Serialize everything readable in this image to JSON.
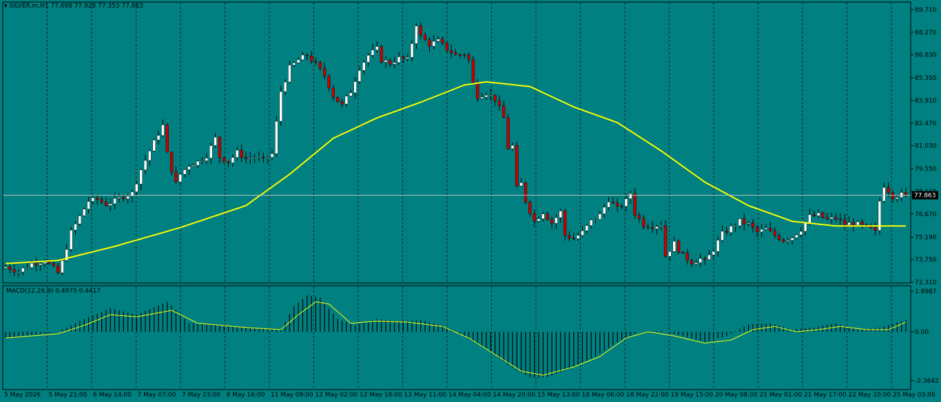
{
  "header": {
    "symbol": "SILVER.m,H1",
    "ohlc": "77.698 77.928 77.353 77.863"
  },
  "colors": {
    "background": "#008080",
    "grid": "#1f1f1f",
    "bull_candle": "#ffffff",
    "bear_candle": "#c80000",
    "wick": "#000000",
    "ma_line": "#ffff00",
    "price_line": "#c0c0c0",
    "macd_signal": "#ffff00",
    "macd_hist": "#000000"
  },
  "chart_data": [
    {
      "type": "candlestick",
      "name": "SILVER.m,H1",
      "ylim": [
        72.31,
        89.71
      ],
      "y_ticks": [
        "89.710",
        "88.270",
        "86.830",
        "85.350",
        "83.910",
        "82.470",
        "81.030",
        "79.550",
        "78.110",
        "76.670",
        "75.190",
        "73.750",
        "72.310"
      ],
      "x_ticks": [
        "5 May 2026",
        "5 May 21:00",
        "6 May 14:00",
        "7 May 07:00",
        "7 May 23:00",
        "8 May 16:00",
        "11 May 09:00",
        "12 May 02:00",
        "12 May 18:00",
        "13 May 11:00",
        "14 May 04:00",
        "14 May 20:00",
        "15 May 13:00",
        "18 May 06:00",
        "18 May 22:00",
        "19 May 15:00",
        "20 May 08:00",
        "21 May 01:00",
        "21 May 17:00",
        "22 May 10:00",
        "25 May 03:00"
      ],
      "current_price": "77.863",
      "close_path": [
        [
          0,
          73.3
        ],
        [
          3,
          73.0
        ],
        [
          6,
          73.5
        ],
        [
          9,
          73.7
        ],
        [
          11,
          73.2
        ],
        [
          12,
          72.9
        ],
        [
          13,
          73.6
        ],
        [
          15,
          75.5
        ],
        [
          17,
          76.5
        ],
        [
          19,
          77.5
        ],
        [
          21,
          77.6
        ],
        [
          23,
          77.3
        ],
        [
          25,
          77.5
        ],
        [
          27,
          77.8
        ],
        [
          29,
          78.0
        ],
        [
          31,
          79.5
        ],
        [
          33,
          80.7
        ],
        [
          35,
          81.8
        ],
        [
          36,
          82.3
        ],
        [
          37,
          80.5
        ],
        [
          38,
          79.5
        ],
        [
          39,
          78.6
        ],
        [
          40,
          79.2
        ],
        [
          42,
          79.8
        ],
        [
          44,
          80.0
        ],
        [
          46,
          80.4
        ],
        [
          48,
          81.5
        ],
        [
          49,
          80.3
        ],
        [
          51,
          80.0
        ],
        [
          53,
          80.6
        ],
        [
          55,
          80.2
        ],
        [
          57,
          80.3
        ],
        [
          59,
          80.1
        ],
        [
          61,
          80.5
        ],
        [
          63,
          84.5
        ],
        [
          65,
          86.0
        ],
        [
          67,
          86.5
        ],
        [
          69,
          86.8
        ],
        [
          71,
          86.2
        ],
        [
          73,
          85.5
        ],
        [
          75,
          84.2
        ],
        [
          77,
          83.6
        ],
        [
          79,
          84.5
        ],
        [
          81,
          86.0
        ],
        [
          83,
          86.8
        ],
        [
          85,
          87.2
        ],
        [
          86,
          86.5
        ],
        [
          88,
          86.3
        ],
        [
          90,
          86.6
        ],
        [
          92,
          86.5
        ],
        [
          93,
          87.6
        ],
        [
          94,
          88.8
        ],
        [
          95,
          88.0
        ],
        [
          97,
          87.5
        ],
        [
          99,
          87.7
        ],
        [
          101,
          87.2
        ],
        [
          103,
          86.8
        ],
        [
          105,
          86.9
        ],
        [
          106,
          86.5
        ],
        [
          107,
          85.0
        ],
        [
          108,
          84.2
        ],
        [
          110,
          84.4
        ],
        [
          112,
          84.0
        ],
        [
          114,
          82.8
        ],
        [
          115,
          80.9
        ],
        [
          116,
          81.0
        ],
        [
          117,
          78.3
        ],
        [
          118,
          78.6
        ],
        [
          119,
          77.5
        ],
        [
          121,
          76.2
        ],
        [
          123,
          76.8
        ],
        [
          125,
          76.1
        ],
        [
          127,
          76.8
        ],
        [
          128,
          75.3
        ],
        [
          130,
          75.1
        ],
        [
          132,
          75.5
        ],
        [
          134,
          76.2
        ],
        [
          136,
          76.6
        ],
        [
          138,
          77.6
        ],
        [
          140,
          77.0
        ],
        [
          142,
          77.5
        ],
        [
          143,
          78.0
        ],
        [
          144,
          76.7
        ],
        [
          146,
          76.0
        ],
        [
          148,
          75.9
        ],
        [
          150,
          76.0
        ],
        [
          151,
          74.0
        ],
        [
          153,
          74.8
        ],
        [
          155,
          74.0
        ],
        [
          157,
          73.6
        ],
        [
          159,
          73.8
        ],
        [
          160,
          73.6
        ],
        [
          162,
          74.4
        ],
        [
          164,
          75.4
        ],
        [
          166,
          75.8
        ],
        [
          168,
          76.2
        ],
        [
          170,
          76.0
        ],
        [
          172,
          75.5
        ],
        [
          174,
          75.7
        ],
        [
          176,
          75.3
        ],
        [
          178,
          75.0
        ],
        [
          180,
          75.2
        ],
        [
          182,
          75.7
        ],
        [
          184,
          76.5
        ],
        [
          186,
          76.6
        ],
        [
          188,
          76.3
        ],
        [
          190,
          76.4
        ],
        [
          192,
          76.0
        ],
        [
          194,
          76.1
        ],
        [
          196,
          75.9
        ],
        [
          198,
          75.7
        ],
        [
          199,
          75.5
        ],
        [
          200,
          77.5
        ],
        [
          201,
          78.5
        ],
        [
          203,
          77.8
        ],
        [
          205,
          77.9
        ],
        [
          206,
          77.863
        ]
      ],
      "ma_path": [
        [
          0,
          73.5
        ],
        [
          12,
          73.7
        ],
        [
          25,
          74.6
        ],
        [
          40,
          75.8
        ],
        [
          55,
          77.2
        ],
        [
          65,
          79.2
        ],
        [
          75,
          81.5
        ],
        [
          85,
          82.8
        ],
        [
          95,
          83.8
        ],
        [
          105,
          84.9
        ],
        [
          110,
          85.1
        ],
        [
          120,
          84.8
        ],
        [
          130,
          83.5
        ],
        [
          140,
          82.5
        ],
        [
          150,
          80.7
        ],
        [
          160,
          78.7
        ],
        [
          170,
          77.2
        ],
        [
          180,
          76.2
        ],
        [
          190,
          75.9
        ],
        [
          206,
          75.9
        ]
      ]
    },
    {
      "type": "macd",
      "name": "MACD(12,26,9)",
      "values": "0.4975 0.4417",
      "ylim": [
        -2.3642,
        1.8987
      ],
      "y_ticks": [
        "1.8987",
        "0.00",
        "-2.3642"
      ],
      "main_path": [
        [
          0,
          -0.3
        ],
        [
          12,
          0.0
        ],
        [
          18,
          0.6
        ],
        [
          24,
          1.1
        ],
        [
          30,
          0.8
        ],
        [
          37,
          1.4
        ],
        [
          42,
          0.4
        ],
        [
          55,
          0.2
        ],
        [
          63,
          0.1
        ],
        [
          66,
          1.2
        ],
        [
          69,
          1.7
        ],
        [
          72,
          1.6
        ],
        [
          76,
          0.6
        ],
        [
          80,
          0.3
        ],
        [
          85,
          0.6
        ],
        [
          90,
          0.5
        ],
        [
          95,
          0.55
        ],
        [
          100,
          0.3
        ],
        [
          105,
          -0.2
        ],
        [
          110,
          -0.8
        ],
        [
          115,
          -1.6
        ],
        [
          120,
          -2.2
        ],
        [
          124,
          -2.2
        ],
        [
          130,
          -1.7
        ],
        [
          135,
          -1.2
        ],
        [
          140,
          -0.5
        ],
        [
          145,
          0.0
        ],
        [
          150,
          0.05
        ],
        [
          155,
          -0.2
        ],
        [
          160,
          -0.5
        ],
        [
          165,
          -0.2
        ],
        [
          170,
          0.35
        ],
        [
          175,
          0.4
        ],
        [
          180,
          0.1
        ],
        [
          185,
          0.2
        ],
        [
          190,
          0.4
        ],
        [
          195,
          0.1
        ],
        [
          200,
          0.2
        ],
        [
          206,
          0.55
        ]
      ],
      "signal_path": [
        [
          0,
          -0.3
        ],
        [
          12,
          -0.1
        ],
        [
          18,
          0.3
        ],
        [
          24,
          0.8
        ],
        [
          30,
          0.7
        ],
        [
          38,
          1.0
        ],
        [
          44,
          0.4
        ],
        [
          55,
          0.2
        ],
        [
          63,
          0.1
        ],
        [
          67,
          0.8
        ],
        [
          71,
          1.4
        ],
        [
          74,
          1.3
        ],
        [
          79,
          0.4
        ],
        [
          85,
          0.5
        ],
        [
          92,
          0.45
        ],
        [
          100,
          0.25
        ],
        [
          106,
          -0.3
        ],
        [
          112,
          -1.1
        ],
        [
          118,
          -1.9
        ],
        [
          123,
          -2.1
        ],
        [
          130,
          -1.7
        ],
        [
          136,
          -1.2
        ],
        [
          142,
          -0.3
        ],
        [
          147,
          0.0
        ],
        [
          153,
          -0.2
        ],
        [
          160,
          -0.55
        ],
        [
          166,
          -0.4
        ],
        [
          171,
          0.1
        ],
        [
          176,
          0.25
        ],
        [
          181,
          0.0
        ],
        [
          186,
          0.1
        ],
        [
          191,
          0.25
        ],
        [
          197,
          0.1
        ],
        [
          202,
          0.1
        ],
        [
          206,
          0.45
        ]
      ]
    }
  ]
}
